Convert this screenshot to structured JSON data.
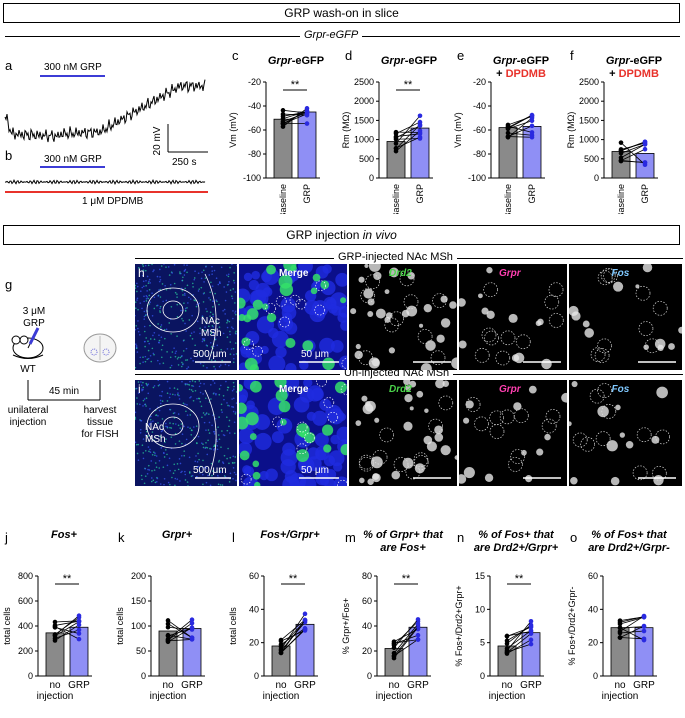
{
  "section1": {
    "title": "GRP wash-on in slice",
    "subtitle": "Grpr-eGFP"
  },
  "section2": {
    "title_prefix": "GRP injection ",
    "title_em": "in vivo"
  },
  "panel_letters": [
    "a",
    "b",
    "c",
    "d",
    "e",
    "f",
    "g",
    "h",
    "i",
    "j",
    "k",
    "l",
    "m",
    "n",
    "o"
  ],
  "traces": {
    "a_bar_label": "300 nM GRP",
    "b_bar_label": "300 nM GRP",
    "b_red_label": "1 μM DPDMB",
    "scale_y": "20 mV",
    "scale_x": "250 s",
    "colors": {
      "trace": "#000000",
      "grp_bar": "#3c3cd6",
      "dpdmb": "#e8322b"
    }
  },
  "panel_g": {
    "dose": "3 μM",
    "drug": "GRP",
    "mouse": "WT",
    "time": "45 min",
    "left_caption": [
      "unilateral",
      "injection"
    ],
    "right_caption": [
      "harvest",
      "tissue",
      "for FISH"
    ]
  },
  "micrographs": {
    "row_h_title": "GRP-injected NAc MSh",
    "row_i_title": "Un-injected NAc MSh",
    "merge": "Merge",
    "drd2": "Drd2",
    "grpr": "Grpr",
    "fos": "Fos",
    "region": [
      "NAc",
      "MSh"
    ],
    "scale_large": "500 μm",
    "scale_small": "50 μm",
    "colors": {
      "drd2": "#4ad44a",
      "grpr": "#ff3fb0",
      "fos": "#7fc8ff"
    }
  },
  "chart_data": [
    {
      "id": "c",
      "type": "bar",
      "title_em": "Grpr",
      "title_rest": "-eGFP",
      "title_red": "",
      "ylabel": "Vm (mV)",
      "categories": [
        "Baseline",
        "GRP"
      ],
      "values": [
        -51,
        -45
      ],
      "ylim": [
        -100,
        -20
      ],
      "yticks": [
        -20,
        -40,
        -60,
        -80,
        -100
      ],
      "sig": "**"
    },
    {
      "id": "d",
      "type": "bar",
      "title_em": "Grpr",
      "title_rest": "-eGFP",
      "title_red": "",
      "ylabel": "Rm (MΩ)",
      "categories": [
        "Baseline",
        "GRP"
      ],
      "values": [
        950,
        1300
      ],
      "ylim": [
        0,
        2500
      ],
      "yticks": [
        0,
        500,
        1000,
        1500,
        2000,
        2500
      ],
      "sig": "**"
    },
    {
      "id": "e",
      "type": "bar",
      "title_em": "Grpr",
      "title_rest": "-eGFP",
      "title_red": "DPDMB",
      "ylabel": "Vm (mV)",
      "categories": [
        "Baseline",
        "GRP"
      ],
      "values": [
        -58,
        -57
      ],
      "ylim": [
        -100,
        -20
      ],
      "yticks": [
        -20,
        -40,
        -60,
        -80,
        -100
      ],
      "sig": ""
    },
    {
      "id": "f",
      "type": "bar",
      "title_em": "Grpr",
      "title_rest": "-eGFP",
      "title_red": "DPDMB",
      "ylabel": "Rm (MΩ)",
      "categories": [
        "Baseline",
        "GRP"
      ],
      "values": [
        690,
        640
      ],
      "ylim": [
        0,
        2500
      ],
      "yticks": [
        0,
        500,
        1000,
        1500,
        2000,
        2500
      ],
      "sig": ""
    },
    {
      "id": "j",
      "type": "bar",
      "title": "Fos+",
      "ylabel": "total cells",
      "categories": [
        "no injection",
        "GRP"
      ],
      "values": [
        345,
        390
      ],
      "ylim": [
        0,
        800
      ],
      "yticks": [
        0,
        200,
        400,
        600,
        800
      ],
      "sig": "**"
    },
    {
      "id": "k",
      "type": "bar",
      "title": "Grpr+",
      "ylabel": "total cells",
      "categories": [
        "no injection",
        "GRP"
      ],
      "values": [
        90,
        95
      ],
      "ylim": [
        0,
        200
      ],
      "yticks": [
        0,
        50,
        100,
        150,
        200
      ],
      "sig": ""
    },
    {
      "id": "l",
      "type": "bar",
      "title": "Fos+/Grpr+",
      "ylabel": "total cells",
      "categories": [
        "no injection",
        "GRP"
      ],
      "values": [
        18,
        31
      ],
      "ylim": [
        0,
        60
      ],
      "yticks": [
        0,
        20,
        40,
        60
      ],
      "sig": "**"
    },
    {
      "id": "m",
      "type": "bar",
      "title": "% of Grpr+ that are Fos+",
      "ylabel": "% Grpr+/Fos+",
      "categories": [
        "no injection",
        "GRP"
      ],
      "values": [
        22,
        39
      ],
      "ylim": [
        0,
        80
      ],
      "yticks": [
        0,
        20,
        40,
        60,
        80
      ],
      "sig": "**"
    },
    {
      "id": "n",
      "type": "bar",
      "title": "% of Fos+ that are Drd2+/Grpr+",
      "ylabel": "% Fos+/Drd2+Grpr+",
      "categories": [
        "no injection",
        "GRP"
      ],
      "values": [
        4.5,
        6.5
      ],
      "ylim": [
        0,
        15
      ],
      "yticks": [
        0,
        5,
        10,
        15
      ],
      "sig": "**"
    },
    {
      "id": "o",
      "type": "bar",
      "title": "% of Fos+ that are Drd2+/Grpr-",
      "ylabel": "% Fos+/Drd2+Grpr-",
      "categories": [
        "no injection",
        "GRP"
      ],
      "values": [
        29,
        29
      ],
      "ylim": [
        0,
        60
      ],
      "yticks": [
        0,
        20,
        40,
        60
      ],
      "sig": ""
    }
  ]
}
